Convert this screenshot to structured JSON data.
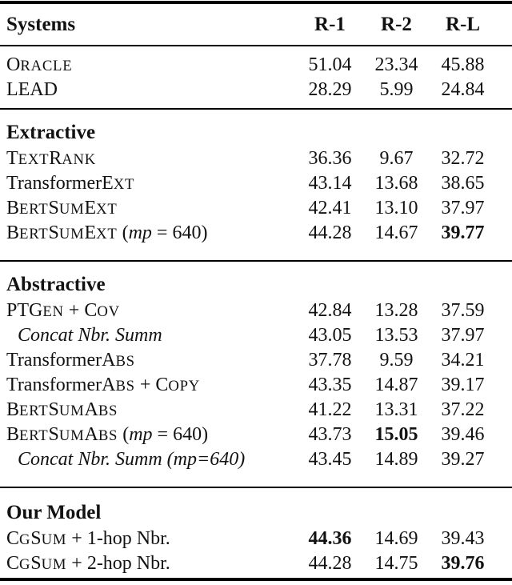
{
  "table": {
    "columns": [
      "Systems",
      "R-1",
      "R-2",
      "R-L"
    ],
    "sections": [
      {
        "header": null,
        "rows": [
          {
            "parts": [
              {
                "t": "O"
              },
              {
                "t": "RACLE",
                "s": "sc"
              }
            ],
            "values": [
              {
                "v": "51.04"
              },
              {
                "v": "23.34"
              },
              {
                "v": "45.88"
              }
            ]
          },
          {
            "parts": [
              {
                "t": "LEAD"
              }
            ],
            "values": [
              {
                "v": "28.29"
              },
              {
                "v": "5.99"
              },
              {
                "v": "24.84"
              }
            ]
          }
        ]
      },
      {
        "header": "Extractive",
        "rows": [
          {
            "parts": [
              {
                "t": "T"
              },
              {
                "t": "EXT",
                "s": "sc"
              },
              {
                "t": "R"
              },
              {
                "t": "ANK",
                "s": "sc"
              }
            ],
            "values": [
              {
                "v": "36.36"
              },
              {
                "v": "9.67"
              },
              {
                "v": "32.72"
              }
            ]
          },
          {
            "parts": [
              {
                "t": "Transformer"
              },
              {
                "t": "E"
              },
              {
                "t": "XT",
                "s": "sc"
              }
            ],
            "values": [
              {
                "v": "43.14"
              },
              {
                "v": "13.68"
              },
              {
                "v": "38.65"
              }
            ]
          },
          {
            "parts": [
              {
                "t": "B"
              },
              {
                "t": "ERT",
                "s": "sc"
              },
              {
                "t": "S"
              },
              {
                "t": "UM",
                "s": "sc"
              },
              {
                "t": "E"
              },
              {
                "t": "XT",
                "s": "sc"
              }
            ],
            "values": [
              {
                "v": "42.41"
              },
              {
                "v": "13.10"
              },
              {
                "v": "37.97"
              }
            ]
          },
          {
            "parts": [
              {
                "t": "B"
              },
              {
                "t": "ERT",
                "s": "sc"
              },
              {
                "t": "S"
              },
              {
                "t": "UM",
                "s": "sc"
              },
              {
                "t": "E"
              },
              {
                "t": "XT",
                "s": "sc"
              },
              {
                "t": " ("
              },
              {
                "t": "mp",
                "s": "it"
              },
              {
                "t": " = 640)"
              }
            ],
            "values": [
              {
                "v": "44.28"
              },
              {
                "v": "14.67"
              },
              {
                "v": "39.77",
                "b": true
              }
            ]
          }
        ]
      },
      {
        "header": "Abstractive",
        "rows": [
          {
            "parts": [
              {
                "t": "PTG"
              },
              {
                "t": "EN",
                "s": "sc"
              },
              {
                "t": " + C"
              },
              {
                "t": "OV",
                "s": "sc"
              }
            ],
            "values": [
              {
                "v": "42.84"
              },
              {
                "v": "13.28"
              },
              {
                "v": "37.59"
              }
            ]
          },
          {
            "indent": true,
            "parts": [
              {
                "t": "Concat Nbr. Summ",
                "s": "it"
              }
            ],
            "values": [
              {
                "v": "43.05"
              },
              {
                "v": "13.53"
              },
              {
                "v": "37.97"
              }
            ]
          },
          {
            "parts": [
              {
                "t": "Transformer"
              },
              {
                "t": "A"
              },
              {
                "t": "BS",
                "s": "sc"
              }
            ],
            "values": [
              {
                "v": "37.78"
              },
              {
                "v": "9.59"
              },
              {
                "v": "34.21"
              }
            ]
          },
          {
            "parts": [
              {
                "t": "Transformer"
              },
              {
                "t": "A"
              },
              {
                "t": "BS",
                "s": "sc"
              },
              {
                "t": " + C"
              },
              {
                "t": "OPY",
                "s": "sc"
              }
            ],
            "values": [
              {
                "v": "43.35"
              },
              {
                "v": "14.87"
              },
              {
                "v": "39.17"
              }
            ]
          },
          {
            "parts": [
              {
                "t": "B"
              },
              {
                "t": "ERT",
                "s": "sc"
              },
              {
                "t": "S"
              },
              {
                "t": "UM",
                "s": "sc"
              },
              {
                "t": "A"
              },
              {
                "t": "BS",
                "s": "sc"
              }
            ],
            "values": [
              {
                "v": "41.22"
              },
              {
                "v": "13.31"
              },
              {
                "v": "37.22"
              }
            ]
          },
          {
            "parts": [
              {
                "t": "B"
              },
              {
                "t": "ERT",
                "s": "sc"
              },
              {
                "t": "S"
              },
              {
                "t": "UM",
                "s": "sc"
              },
              {
                "t": "A"
              },
              {
                "t": "BS",
                "s": "sc"
              },
              {
                "t": " ("
              },
              {
                "t": "mp",
                "s": "it"
              },
              {
                "t": " = 640)"
              }
            ],
            "values": [
              {
                "v": "43.73"
              },
              {
                "v": "15.05",
                "b": true
              },
              {
                "v": "39.46"
              }
            ]
          },
          {
            "indent": true,
            "parts": [
              {
                "t": "Concat Nbr. Summ (mp=640)",
                "s": "it"
              }
            ],
            "values": [
              {
                "v": "43.45"
              },
              {
                "v": "14.89"
              },
              {
                "v": "39.27"
              }
            ]
          }
        ]
      },
      {
        "header": "Our Model",
        "rows": [
          {
            "parts": [
              {
                "t": "C"
              },
              {
                "t": "G",
                "s": "sc"
              },
              {
                "t": "S"
              },
              {
                "t": "UM",
                "s": "sc"
              },
              {
                "t": " + 1-hop Nbr."
              }
            ],
            "values": [
              {
                "v": "44.36",
                "b": true
              },
              {
                "v": "14.69"
              },
              {
                "v": "39.43"
              }
            ]
          },
          {
            "parts": [
              {
                "t": "C"
              },
              {
                "t": "G",
                "s": "sc"
              },
              {
                "t": "S"
              },
              {
                "t": "UM",
                "s": "sc"
              },
              {
                "t": " + 2-hop Nbr."
              }
            ],
            "values": [
              {
                "v": "44.28"
              },
              {
                "v": "14.75"
              },
              {
                "v": "39.76",
                "b": true
              }
            ]
          }
        ]
      }
    ]
  }
}
